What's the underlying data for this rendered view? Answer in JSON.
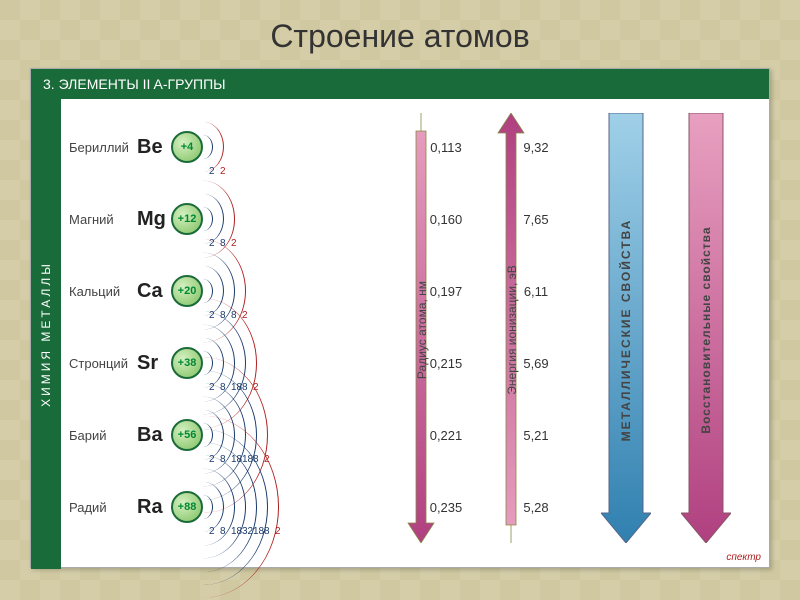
{
  "title": "Строение атомов",
  "header": "3. ЭЛЕМЕНТЫ  II A-ГРУППЫ",
  "side_label": "ХИМИЯ  МЕТАЛЛЫ",
  "footer": "спектр",
  "shell_style": {
    "base_radius": 10,
    "step": 11,
    "height_factor": 2.4,
    "normal_color": "#1a3a6b",
    "last_color": "#b02020"
  },
  "nucleus_style": {
    "border_color": "#1a6b3a",
    "fill_from": "#d4f0c0",
    "fill_to": "#7fc060"
  },
  "elements": [
    {
      "name": "Бериллий",
      "symbol": "Be",
      "charge": "+4",
      "shells": [
        2,
        2
      ],
      "radius": "0,113",
      "energy": "9,32"
    },
    {
      "name": "Магний",
      "symbol": "Mg",
      "charge": "+12",
      "shells": [
        2,
        8,
        2
      ],
      "radius": "0,160",
      "energy": "7,65"
    },
    {
      "name": "Кальций",
      "symbol": "Ca",
      "charge": "+20",
      "shells": [
        2,
        8,
        8,
        2
      ],
      "radius": "0,197",
      "energy": "6,11"
    },
    {
      "name": "Стронций",
      "symbol": "Sr",
      "charge": "+38",
      "shells": [
        2,
        8,
        18,
        8,
        2
      ],
      "radius": "0,215",
      "energy": "5,69"
    },
    {
      "name": "Барий",
      "symbol": "Ba",
      "charge": "+56",
      "shells": [
        2,
        8,
        18,
        18,
        8,
        2
      ],
      "radius": "0,221",
      "energy": "5,21"
    },
    {
      "name": "Радий",
      "symbol": "Ra",
      "charge": "+88",
      "shells": [
        2,
        8,
        18,
        32,
        18,
        8,
        2
      ],
      "radius": "0,235",
      "energy": "5,28"
    }
  ],
  "columns": {
    "radius": {
      "label": "Радиус атома, нм"
    },
    "energy": {
      "label": "Энергия ионизации, эВ"
    },
    "metallic": {
      "label": "МЕТАЛЛИЧЕСКИЕ  СВОЙСТВА"
    },
    "redox": {
      "label": "Восстановительные свойства"
    }
  }
}
